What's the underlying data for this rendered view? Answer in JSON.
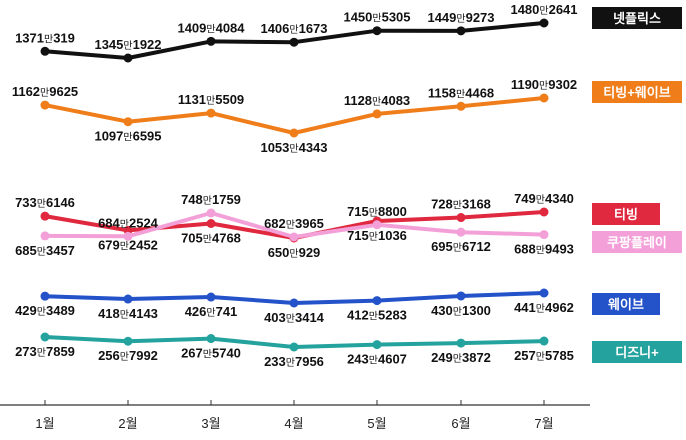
{
  "chart_data": {
    "type": "line",
    "categories": [
      "1월",
      "2월",
      "3월",
      "4월",
      "5월",
      "6월",
      "7월"
    ],
    "unit_word": "만",
    "series": [
      {
        "name": "넷플릭스",
        "color": "#111111",
        "values": [
          13710319,
          13451922,
          14094084,
          14061673,
          14505305,
          14499273,
          14802641
        ],
        "labels": [
          [
            "1371",
            "319"
          ],
          [
            "1345",
            "1922"
          ],
          [
            "1409",
            "4084"
          ],
          [
            "1406",
            "1673"
          ],
          [
            "1450",
            "5305"
          ],
          [
            "1449",
            "9273"
          ],
          [
            "1480",
            "2641"
          ]
        ],
        "label_pos": [
          "above",
          "above",
          "above",
          "above",
          "above",
          "above",
          "above"
        ]
      },
      {
        "name": "티빙+웨이브",
        "color": "#ef7d1a",
        "values": [
          11629625,
          10976595,
          11315509,
          10534343,
          11284083,
          11584468,
          11909302
        ],
        "labels": [
          [
            "1162",
            "9625"
          ],
          [
            "1097",
            "6595"
          ],
          [
            "1131",
            "5509"
          ],
          [
            "1053",
            "4343"
          ],
          [
            "1128",
            "4083"
          ],
          [
            "1158",
            "4468"
          ],
          [
            "1190",
            "9302"
          ]
        ],
        "label_pos": [
          "above",
          "below",
          "above",
          "below",
          "above",
          "above",
          "above"
        ]
      },
      {
        "name": "티빙",
        "color": "#e0283f",
        "values": [
          7336146,
          6792452,
          7054768,
          6500929,
          7151036,
          7283168,
          7494340
        ],
        "labels": [
          [
            "733",
            "6146"
          ],
          [
            "679",
            "2452"
          ],
          [
            "705",
            "4768"
          ],
          [
            "650",
            "929"
          ],
          [
            "715",
            "1036"
          ],
          [
            "728",
            "3168"
          ],
          [
            "749",
            "4340"
          ]
        ],
        "label_pos": [
          "above",
          "below",
          "below",
          "below",
          "below",
          "above",
          "above"
        ]
      },
      {
        "name": "쿠팡플레이",
        "color": "#f3a0d8",
        "values": [
          6853457,
          6842524,
          7481759,
          6823965,
          7158800,
          6956712,
          6889493
        ],
        "labels": [
          [
            "685",
            "3457"
          ],
          [
            "684",
            "2524"
          ],
          [
            "748",
            "1759"
          ],
          [
            "682",
            "3965"
          ],
          [
            "715",
            "8800"
          ],
          [
            "695",
            "6712"
          ],
          [
            "688",
            "9493"
          ]
        ],
        "label_pos": [
          "below",
          "above",
          "above",
          "above",
          "above",
          "below",
          "below"
        ]
      },
      {
        "name": "웨이브",
        "color": "#2352c9",
        "values": [
          4293489,
          4184143,
          4260741,
          4033414,
          4125283,
          4301300,
          4414962
        ],
        "labels": [
          [
            "429",
            "3489"
          ],
          [
            "418",
            "4143"
          ],
          [
            "426",
            "741"
          ],
          [
            "403",
            "3414"
          ],
          [
            "412",
            "5283"
          ],
          [
            "430",
            "1300"
          ],
          [
            "441",
            "4962"
          ]
        ],
        "label_pos": [
          "below",
          "below",
          "below",
          "below",
          "below",
          "below",
          "below"
        ]
      },
      {
        "name": "디즈니+",
        "color": "#24a39e",
        "values": [
          2737859,
          2567992,
          2675740,
          2337956,
          2434607,
          2493872,
          2575785
        ],
        "labels": [
          [
            "273",
            "7859"
          ],
          [
            "256",
            "7992"
          ],
          [
            "267",
            "5740"
          ],
          [
            "233",
            "7956"
          ],
          [
            "243",
            "4607"
          ],
          [
            "249",
            "3872"
          ],
          [
            "257",
            "5785"
          ]
        ],
        "label_pos": [
          "below",
          "below",
          "below",
          "below",
          "below",
          "below",
          "below"
        ]
      }
    ]
  }
}
